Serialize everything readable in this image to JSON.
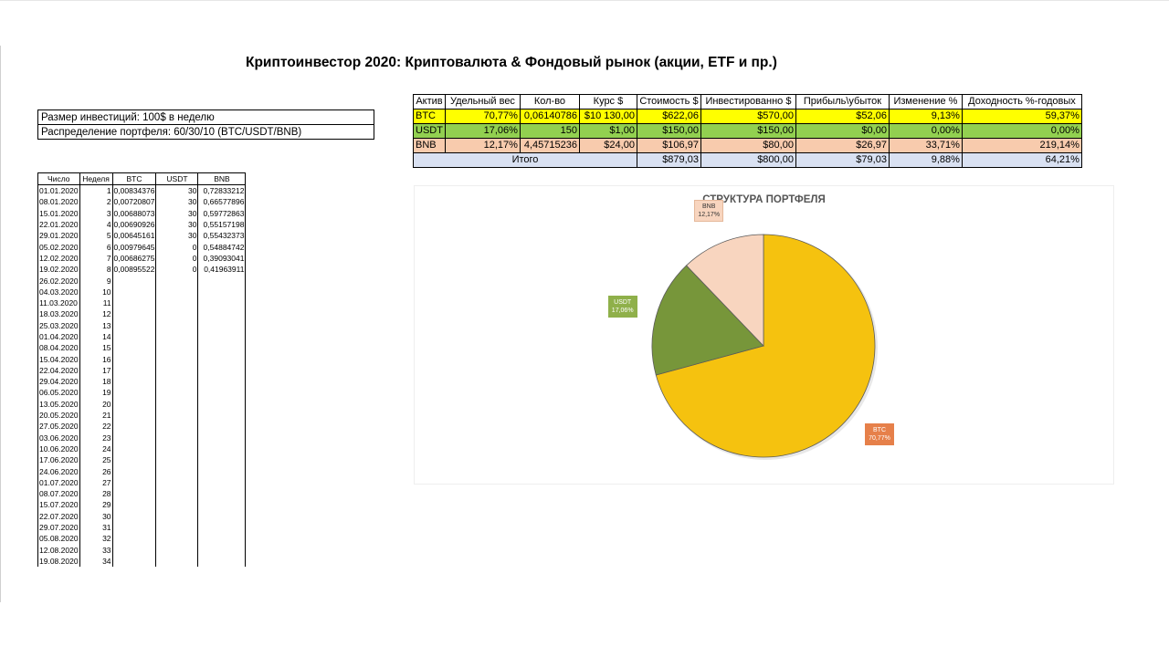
{
  "title": "Криптоинвестор 2020: Криптовалюта & Фондовый рынок (акции, ETF и пр.)",
  "info": {
    "investment": "Размер инвестиций: 100$ в неделю",
    "allocation": "Распределение портфеля: 60/30/10 (BTC/USDT/BNB)"
  },
  "weekly": {
    "headers": [
      "Число",
      "Неделя",
      "BTC",
      "USDT",
      "BNB"
    ],
    "rows": [
      [
        "01.01.2020",
        "1",
        "0,00834376",
        "30",
        "0,72833212"
      ],
      [
        "08.01.2020",
        "2",
        "0,00720807",
        "30",
        "0,66577896"
      ],
      [
        "15.01.2020",
        "3",
        "0,00688073",
        "30",
        "0,59772863"
      ],
      [
        "22.01.2020",
        "4",
        "0,00690926",
        "30",
        "0,55157198"
      ],
      [
        "29.01.2020",
        "5",
        "0,00645161",
        "30",
        "0,55432373"
      ],
      [
        "05.02.2020",
        "6",
        "0,00979645",
        "0",
        "0,54884742"
      ],
      [
        "12.02.2020",
        "7",
        "0,00686275",
        "0",
        "0,39093041"
      ],
      [
        "19.02.2020",
        "8",
        "0,00895522",
        "0",
        "0,41963911"
      ],
      [
        "26.02.2020",
        "9",
        "",
        "",
        ""
      ],
      [
        "04.03.2020",
        "10",
        "",
        "",
        ""
      ],
      [
        "11.03.2020",
        "11",
        "",
        "",
        ""
      ],
      [
        "18.03.2020",
        "12",
        "",
        "",
        ""
      ],
      [
        "25.03.2020",
        "13",
        "",
        "",
        ""
      ],
      [
        "01.04.2020",
        "14",
        "",
        "",
        ""
      ],
      [
        "08.04.2020",
        "15",
        "",
        "",
        ""
      ],
      [
        "15.04.2020",
        "16",
        "",
        "",
        ""
      ],
      [
        "22.04.2020",
        "17",
        "",
        "",
        ""
      ],
      [
        "29.04.2020",
        "18",
        "",
        "",
        ""
      ],
      [
        "06.05.2020",
        "19",
        "",
        "",
        ""
      ],
      [
        "13.05.2020",
        "20",
        "",
        "",
        ""
      ],
      [
        "20.05.2020",
        "21",
        "",
        "",
        ""
      ],
      [
        "27.05.2020",
        "22",
        "",
        "",
        ""
      ],
      [
        "03.06.2020",
        "23",
        "",
        "",
        ""
      ],
      [
        "10.06.2020",
        "24",
        "",
        "",
        ""
      ],
      [
        "17.06.2020",
        "25",
        "",
        "",
        ""
      ],
      [
        "24.06.2020",
        "26",
        "",
        "",
        ""
      ],
      [
        "01.07.2020",
        "27",
        "",
        "",
        ""
      ],
      [
        "08.07.2020",
        "28",
        "",
        "",
        ""
      ],
      [
        "15.07.2020",
        "29",
        "",
        "",
        ""
      ],
      [
        "22.07.2020",
        "30",
        "",
        "",
        ""
      ],
      [
        "29.07.2020",
        "31",
        "",
        "",
        ""
      ],
      [
        "05.08.2020",
        "32",
        "",
        "",
        ""
      ],
      [
        "12.08.2020",
        "33",
        "",
        "",
        ""
      ],
      [
        "19.08.2020",
        "34",
        "",
        "",
        ""
      ]
    ]
  },
  "summary": {
    "headers": [
      "Актив",
      "Удельный вес",
      "Кол-во",
      "Курс $",
      "Стоимость $",
      "Инвестированно $",
      "Прибыль\\убыток",
      "Изменение %",
      "Доходность %-годовых"
    ],
    "rows": [
      {
        "cells": [
          "BTC",
          "70,77%",
          "0,06140786",
          "$10 130,00",
          "$622,06",
          "$570,00",
          "$52,06",
          "9,13%",
          "59,37%"
        ],
        "color": "#ffff00"
      },
      {
        "cells": [
          "USDT",
          "17,06%",
          "150",
          "$1,00",
          "$150,00",
          "$150,00",
          "$0,00",
          "0,00%",
          "0,00%"
        ],
        "color": "#92d050"
      },
      {
        "cells": [
          "BNB",
          "12,17%",
          "4,45715236",
          "$24,00",
          "$106,97",
          "$80,00",
          "$26,97",
          "33,71%",
          "219,14%"
        ],
        "color": "#f8cbad"
      }
    ],
    "total": {
      "label": "Итого",
      "cells": [
        "$879,03",
        "$800,00",
        "$79,03",
        "9,88%",
        "64,21%"
      ],
      "color": "#d9e1f2"
    }
  },
  "chart_data": {
    "type": "pie",
    "title": "СТРУКТУРА ПОРТФЕЛЯ",
    "slices": [
      {
        "label": "BTC",
        "value": 70.77,
        "text": "70,77%",
        "color": "#f5c20f",
        "label_bg": "#e6804a",
        "label_fg": "#ffffff"
      },
      {
        "label": "USDT",
        "value": 17.06,
        "text": "17,06%",
        "color": "#77963a",
        "label_bg": "#8fb04a",
        "label_fg": "#ffffff"
      },
      {
        "label": "BNB",
        "value": 12.17,
        "text": "12,17%",
        "color": "#f8d5bf",
        "label_bg": "#f8d5bf",
        "label_fg": "#333333"
      }
    ]
  }
}
